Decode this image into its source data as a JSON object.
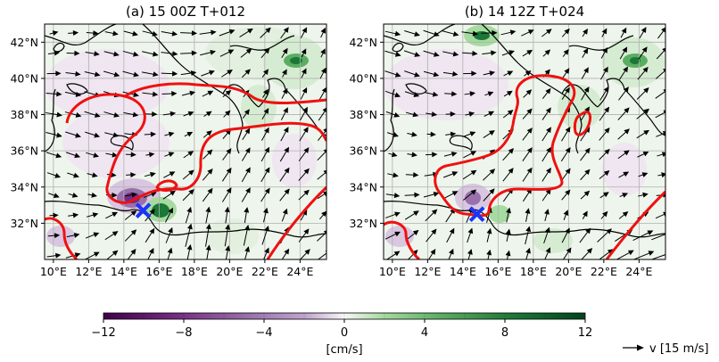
{
  "figure": {
    "panels": [
      {
        "id": "a",
        "title": "(a) 15 00Z T+012",
        "x_ticks": [
          "10°E",
          "12°E",
          "14°E",
          "16°E",
          "18°E",
          "20°E",
          "22°E",
          "24°E"
        ],
        "y_ticks": [
          "32°N",
          "34°N",
          "36°N",
          "38°N",
          "40°N",
          "42°N"
        ],
        "marker": {
          "lon": 15.1,
          "lat": 32.7,
          "symbol": "X",
          "color": "#1a33ff"
        }
      },
      {
        "id": "b",
        "title": "(b) 14 12Z T+024",
        "x_ticks": [
          "10°E",
          "12°E",
          "14°E",
          "16°E",
          "18°E",
          "20°E",
          "22°E",
          "24°E"
        ],
        "y_ticks": [
          "32°N",
          "34°N",
          "36°N",
          "38°N",
          "40°N",
          "42°N"
        ],
        "marker": {
          "lon": 14.8,
          "lat": 32.5,
          "symbol": "X",
          "color": "#1a33ff"
        }
      }
    ],
    "map_extent": {
      "lon": [
        9.5,
        25.5
      ],
      "lat": [
        30,
        43
      ]
    },
    "colorbar": {
      "range": [
        -12,
        12
      ],
      "tick_labels": [
        "−12",
        "−8",
        "−4",
        "0",
        "4",
        "8",
        "12"
      ],
      "label": "[cm/s]",
      "colormap": "PRGn"
    },
    "quiver_key": {
      "label": "v [15 m/s]"
    },
    "colors": {
      "contour": "#ee1111",
      "marker": "#1a33ff",
      "coast": "#000000",
      "grid": "#b0b0b0"
    }
  }
}
